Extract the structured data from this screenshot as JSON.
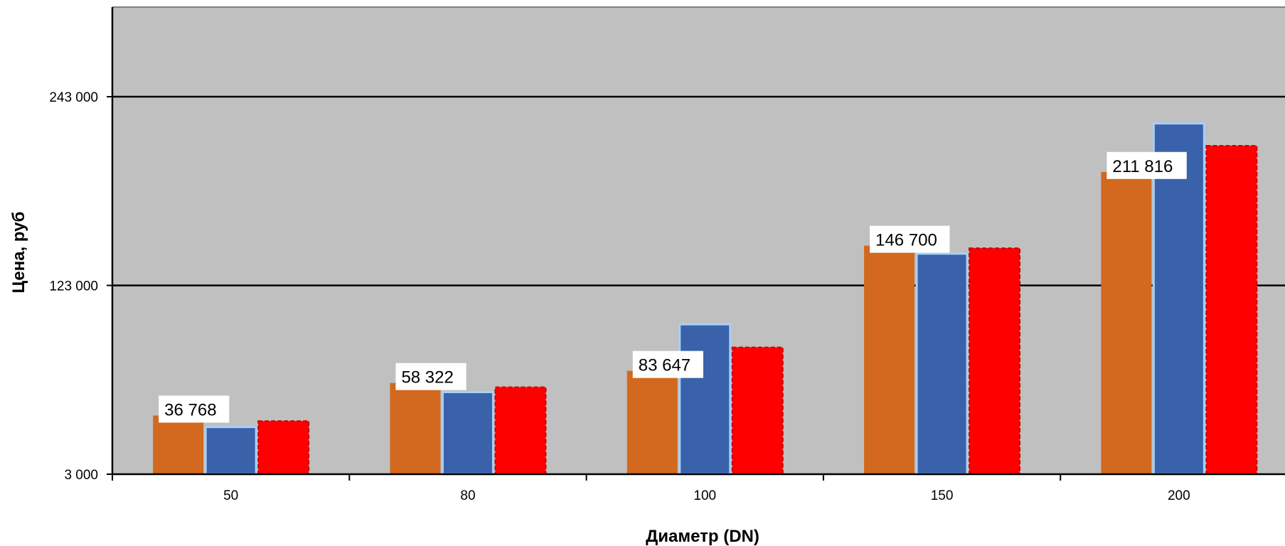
{
  "chart_data": {
    "type": "bar",
    "title": "",
    "xlabel": "Диаметр (DN)",
    "ylabel": "Цена, руб",
    "categories": [
      "50",
      "80",
      "100",
      "150",
      "200"
    ],
    "yticks": [
      3000,
      123000,
      243000
    ],
    "ytick_labels": [
      "3 000",
      "123 000",
      "243 000"
    ],
    "ylim": [
      3000,
      303000
    ],
    "grid": true,
    "legend": "none",
    "series": [
      {
        "color": "#D2691E",
        "values": [
          40300,
          61000,
          68700,
          148300,
          195200
        ]
      },
      {
        "color": "#3A62AA",
        "values": [
          33000,
          55200,
          98300,
          143200,
          226000
        ]
      },
      {
        "color": "#FF0000",
        "values": [
          36768,
          58322,
          83647,
          146700,
          211816
        ]
      }
    ],
    "data_labels": [
      {
        "category": "50",
        "text": "36 768"
      },
      {
        "category": "80",
        "text": "58 322"
      },
      {
        "category": "100",
        "text": "83 647"
      },
      {
        "category": "150",
        "text": "146 700"
      },
      {
        "category": "200",
        "text": "211 816"
      }
    ],
    "colors": {
      "plot_background": "#C0C0C0",
      "gridline": "#000000"
    }
  }
}
